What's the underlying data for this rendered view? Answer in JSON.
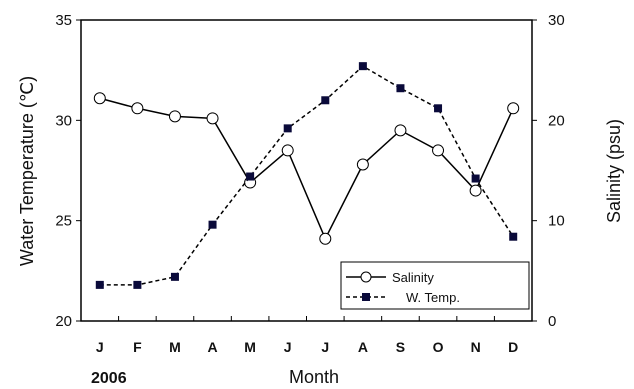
{
  "chart_data": {
    "type": "line",
    "xlabel": "Month",
    "year_label": "2006",
    "categories": [
      "J",
      "F",
      "M",
      "A",
      "M",
      "J",
      "J",
      "A",
      "S",
      "O",
      "N",
      "D"
    ],
    "y_left": {
      "label": "Water Temperature (℃)",
      "range": [
        20,
        35
      ],
      "ticks": [
        "20",
        "25",
        "30",
        "35"
      ]
    },
    "y_right": {
      "label": "Salinity (psu)",
      "range": [
        0,
        30
      ],
      "ticks": [
        "0",
        "10",
        "20",
        "30"
      ]
    },
    "grid": false,
    "legend_position": "bottom-right",
    "series": [
      {
        "name": "Salinity",
        "axis": "right",
        "marker": "open-circle",
        "line": "solid",
        "values": [
          22.2,
          21.2,
          20.4,
          20.2,
          13.8,
          17.0,
          8.2,
          15.6,
          19.0,
          17.0,
          13.0,
          21.2
        ]
      },
      {
        "name": "W. Temp.",
        "axis": "left",
        "marker": "filled-square",
        "line": "dashed",
        "values": [
          21.8,
          21.8,
          22.2,
          24.8,
          27.2,
          29.6,
          31.0,
          32.7,
          31.6,
          30.6,
          27.1,
          24.2
        ]
      }
    ]
  }
}
